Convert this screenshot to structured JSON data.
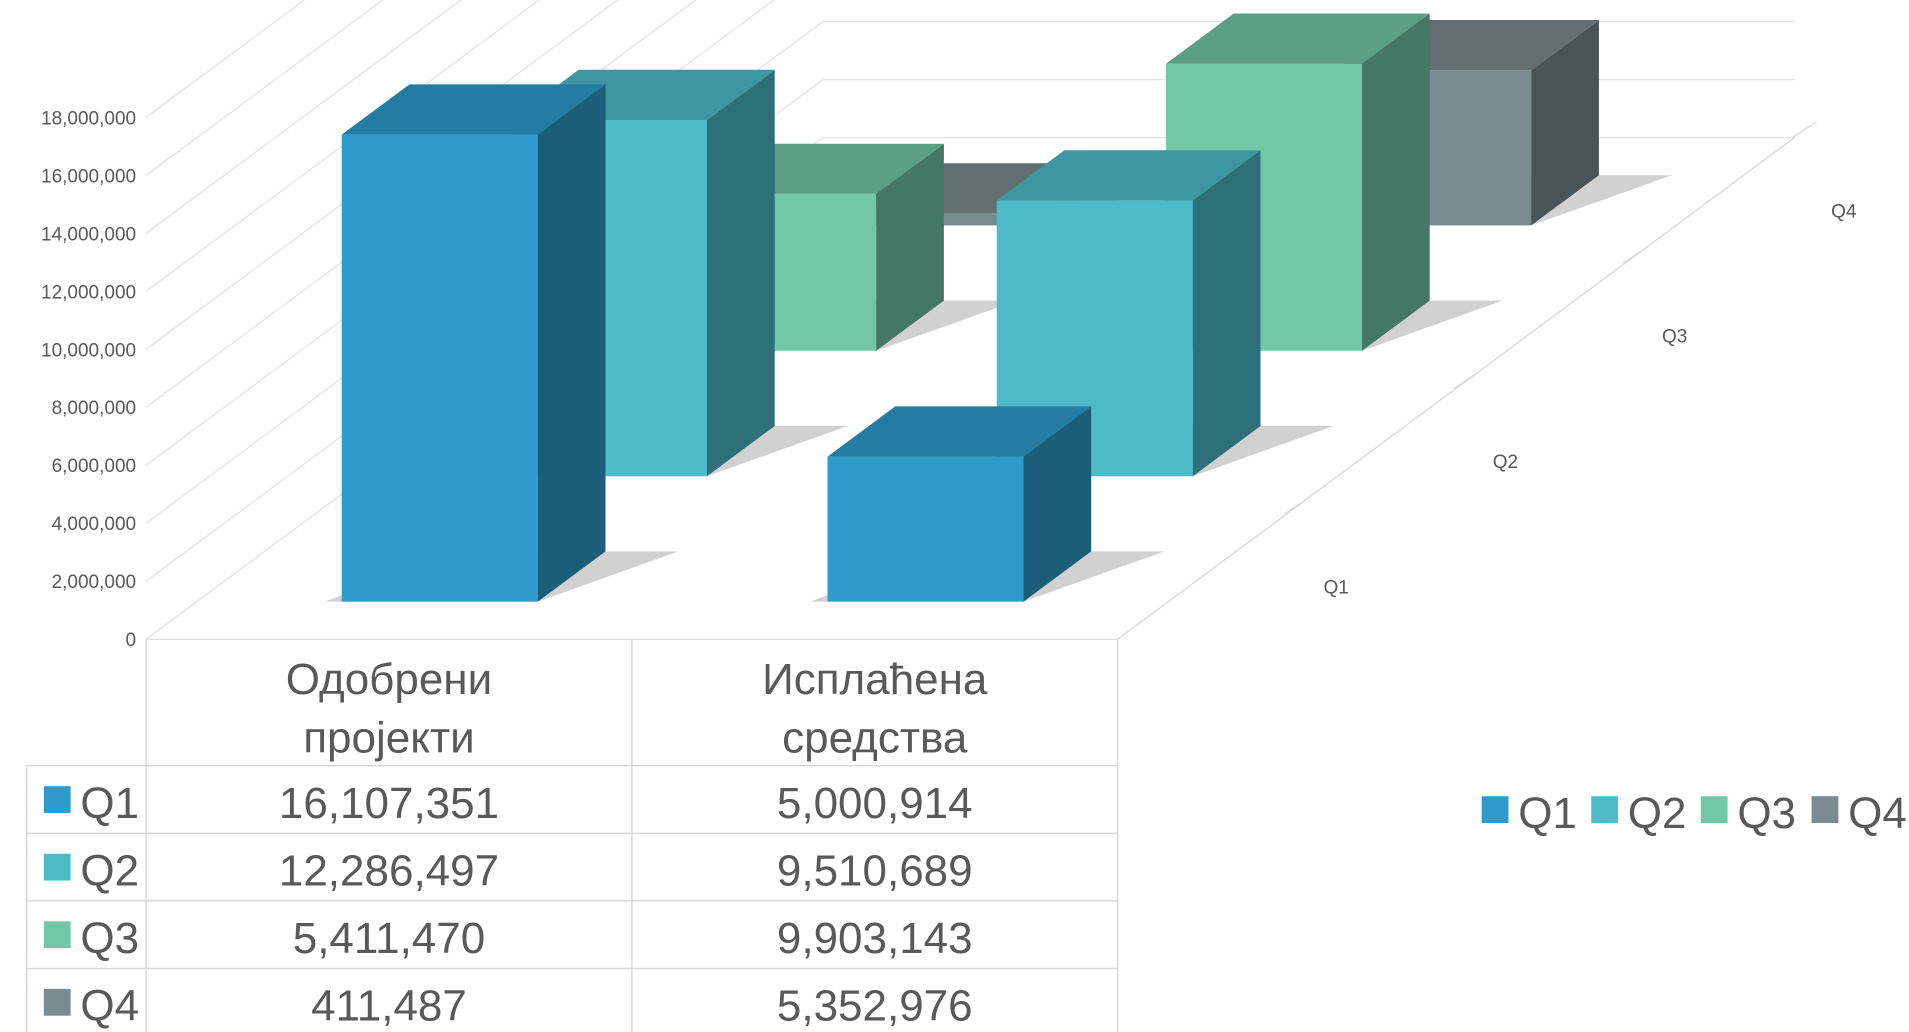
{
  "chart_data": {
    "type": "bar",
    "subtype": "3d-column-with-data-table",
    "categories": [
      "Одобрени пројекти",
      "Исплаћена средства"
    ],
    "series": [
      {
        "name": "Q1",
        "values": [
          16107351,
          5000914
        ],
        "color": "#2E9BCB"
      },
      {
        "name": "Q2",
        "values": [
          12286497,
          9510689
        ],
        "color": "#4DBBC9"
      },
      {
        "name": "Q3",
        "values": [
          5411470,
          9903143
        ],
        "color": "#72C7A8"
      },
      {
        "name": "Q4",
        "values": [
          411487,
          5352976
        ],
        "color": "#7A8C90"
      }
    ],
    "table": {
      "header": [
        "Одобрени пројекти",
        "Исплаћена средства"
      ],
      "rows": [
        {
          "label": "Q1",
          "cells": [
            "16,107,351",
            "5,000,914"
          ]
        },
        {
          "label": "Q2",
          "cells": [
            "12,286,497",
            "9,510,689"
          ]
        },
        {
          "label": "Q3",
          "cells": [
            "5,411,470",
            "9,903,143"
          ]
        },
        {
          "label": "Q4",
          "cells": [
            "411,487",
            "5,352,976"
          ]
        }
      ]
    },
    "ylim": [
      0,
      18000000
    ],
    "yticks": [
      "0",
      "2,000,000",
      "4,000,000",
      "6,000,000",
      "8,000,000",
      "10,000,000",
      "12,000,000",
      "14,000,000",
      "16,000,000",
      "18,000,000"
    ],
    "depth_labels": [
      "Q1",
      "Q2",
      "Q3",
      "Q4"
    ],
    "legend_position": "right",
    "grid": true
  }
}
